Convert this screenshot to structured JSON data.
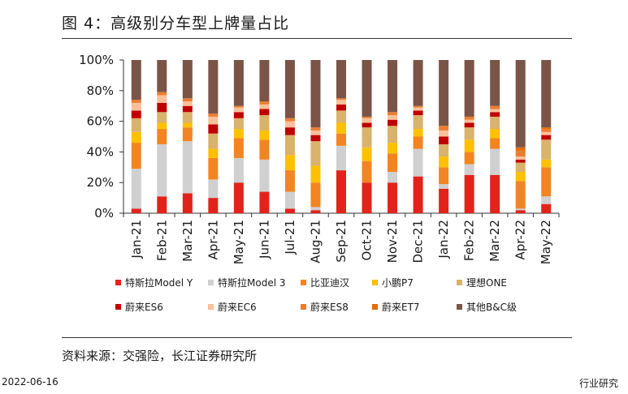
{
  "figure_title": "图 4：高级别分车型上牌量占比",
  "source": "资料来源：交强险，长江证券研究所",
  "footer": {
    "date": "2022-06-16",
    "right": "行业研究"
  },
  "chart_data": {
    "type": "bar",
    "stacked": "percent",
    "title": "",
    "xlabel": "",
    "ylabel": "",
    "ylim": [
      0,
      100
    ],
    "yticks": [
      "0%",
      "20%",
      "40%",
      "60%",
      "80%",
      "100%"
    ],
    "grid": false,
    "legend_position": "bottom",
    "categories": [
      "Jan-21",
      "Feb-21",
      "Mar-21",
      "Apr-21",
      "May-21",
      "Jun-21",
      "Jul-21",
      "Aug-21",
      "Sep-21",
      "Oct-21",
      "Nov-21",
      "Dec-21",
      "Jan-22",
      "Feb-22",
      "Mar-22",
      "Apr-22",
      "May-22"
    ],
    "series": [
      {
        "name": "特斯拉Model Y",
        "color": "#e2231a",
        "values": [
          3,
          11,
          13,
          10,
          20,
          14,
          3,
          2,
          28,
          20,
          20,
          24,
          16,
          25,
          25,
          2,
          6
        ]
      },
      {
        "name": "特斯拉Model 3",
        "color": "#d0d0d0",
        "values": [
          26,
          34,
          34,
          12,
          16,
          21,
          11,
          2,
          16,
          0,
          7,
          18,
          3,
          7,
          17,
          1,
          5
        ]
      },
      {
        "name": "比亚迪汉",
        "color": "#f28522",
        "values": [
          17,
          10,
          9,
          14,
          13,
          13,
          14,
          16,
          8,
          14,
          12,
          8,
          11,
          8,
          7,
          18,
          19
        ]
      },
      {
        "name": "小鹏P7",
        "color": "#ffc000",
        "values": [
          7,
          4,
          3,
          6,
          6,
          6,
          10,
          11,
          7,
          9,
          7,
          5,
          7,
          8,
          6,
          6,
          5
        ]
      },
      {
        "name": "理想ONE",
        "color": "#d9b26b",
        "values": [
          9,
          7,
          7,
          10,
          7,
          10,
          13,
          16,
          8,
          13,
          11,
          9,
          8,
          8,
          8,
          6,
          13
        ]
      },
      {
        "name": "蔚来ES6",
        "color": "#c00000",
        "values": [
          5,
          6,
          4,
          6,
          4,
          4,
          5,
          4,
          4,
          3,
          4,
          3,
          5,
          3,
          3,
          2,
          3
        ]
      },
      {
        "name": "蔚来EC6",
        "color": "#f9c09a",
        "values": [
          5,
          5,
          3,
          5,
          3,
          3,
          4,
          3,
          3,
          3,
          3,
          2,
          4,
          2,
          2,
          2,
          2
        ]
      },
      {
        "name": "蔚来ES8",
        "color": "#ed7d31",
        "values": [
          2,
          2,
          2,
          2,
          1,
          2,
          2,
          2,
          1,
          1,
          2,
          1,
          3,
          2,
          2,
          4,
          2
        ]
      },
      {
        "name": "蔚来ET7",
        "color": "#e46c0a",
        "values": [
          0,
          0,
          0,
          0,
          0,
          0,
          0,
          0,
          0,
          0,
          0,
          0,
          0,
          0,
          0,
          2,
          1
        ]
      },
      {
        "name": "其他B&C级",
        "color": "#7b5447",
        "values": [
          26,
          21,
          25,
          35,
          30,
          27,
          38,
          44,
          25,
          37,
          34,
          30,
          43,
          37,
          30,
          57,
          44
        ]
      }
    ]
  }
}
